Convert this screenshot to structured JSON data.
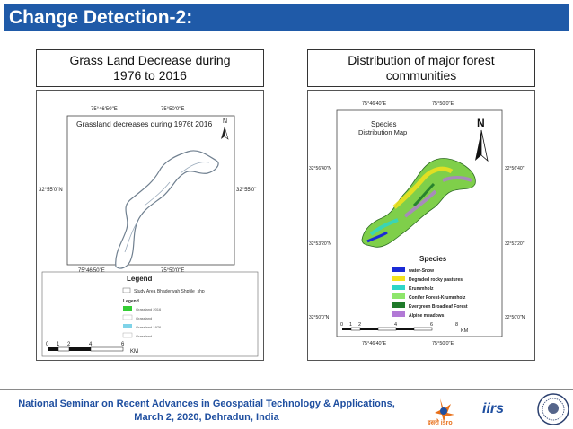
{
  "slide": {
    "title": "Change Detection-2:",
    "footer_line1": "National Seminar on Recent Advances in Geospatial Technology & Applications,",
    "footer_line2": "March 2, 2020, Dehradun, India"
  },
  "left_panel": {
    "caption_line1": "Grass Land Decrease during",
    "caption_line2": "1976 to 2016",
    "map_title": "Grassland decreases during 1976t 2016",
    "north": "N",
    "top_ticks": [
      "75°46'50\"E",
      "75°50'0\"E"
    ],
    "bottom_ticks": [
      "75°46'50\"E",
      "75°50'0\"E"
    ],
    "left_tick": "32°55'0\"N",
    "right_tick": "32°55'0\"",
    "legend_title": "Legend",
    "legend_items": [
      {
        "label": "Study Area Bhaderwah Shpfile_shp",
        "color": "#ffffff"
      },
      {
        "label": "Legend",
        "color": ""
      },
      {
        "label": "Grassland 2016",
        "color": "#33cc33"
      },
      {
        "label": "Grassland",
        "color": "#ffffff"
      },
      {
        "label": "Grassland 1976",
        "color": "#7fd3e8"
      },
      {
        "label": "Grassland",
        "color": "#ffffff"
      }
    ],
    "scale_labels": [
      "0",
      "1",
      "2",
      "4",
      "6"
    ],
    "scale_unit": "KM"
  },
  "right_panel": {
    "caption_line1": "Distribution of major forest",
    "caption_line2": "communities",
    "map_title_line1": "Species",
    "map_title_line2": "Distribution Map",
    "north": "N",
    "top_ticks": [
      "75°46'40\"E",
      "75°50'0\"E"
    ],
    "bottom_ticks": [
      "75°46'40\"E",
      "75°50'0\"E"
    ],
    "left_ticks": [
      "32°56'40\"N",
      "32°53'20\"N",
      "32°50'0\"N"
    ],
    "right_ticks": [
      "32°56'40\"",
      "32°53'20\"",
      "32°50'0\"N"
    ],
    "legend_title": "Species",
    "legend_items": [
      {
        "label": "water-Snow",
        "color": "#1a2ad6"
      },
      {
        "label": "Degraded rocky pastures",
        "color": "#f2e21c"
      },
      {
        "label": "Krummholz",
        "color": "#2ed6c8"
      },
      {
        "label": "Conifer Forest-Krummholz",
        "color": "#8ee66b"
      },
      {
        "label": "Evergreen Broadleaf Forest",
        "color": "#1f7a2a"
      },
      {
        "label": "Alpine meadows",
        "color": "#b279d6"
      }
    ],
    "scale_labels": [
      "0",
      "1",
      "2",
      "4",
      "6",
      "8"
    ],
    "scale_unit": "KM"
  },
  "logos": {
    "iirs": "iirs",
    "isro_text": "इसरो isro"
  }
}
